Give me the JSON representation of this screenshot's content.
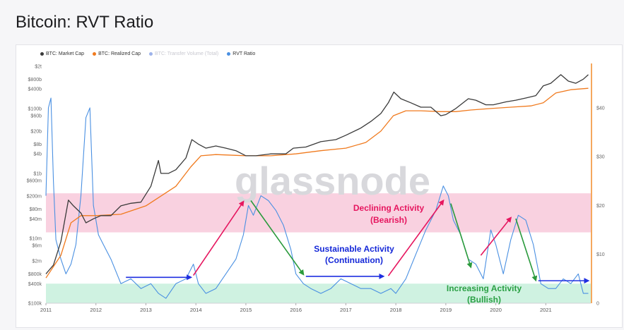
{
  "page": {
    "title": "Bitcoin: RVT Ratio"
  },
  "colors": {
    "market_cap": "#3a3a3a",
    "realized_cap": "#f07a1e",
    "transfer_volume": "#9db3ea",
    "rvt_ratio": "#4a90e2",
    "bearish_band": "#f8c9da",
    "bullish_band": "#c7f0dc",
    "right_axis": "#f28c28"
  },
  "legend": [
    {
      "label": "BTC: Market Cap",
      "color": "#3a3a3a",
      "dim": false
    },
    {
      "label": "BTC: Realized Cap",
      "color": "#f07a1e",
      "dim": false
    },
    {
      "label": "BTC: Transfer Volume (Total)",
      "color": "#9db3ea",
      "dim": true
    },
    {
      "label": "RVT Ratio",
      "color": "#4a90e2",
      "dim": false
    }
  ],
  "watermark": "glassnode",
  "annotations": [
    {
      "text": "Declining Activity",
      "color": "#e6165f"
    },
    {
      "text": "(Bearish)",
      "color": "#e6165f"
    },
    {
      "text": "Sustainable Activity",
      "color": "#1528d8"
    },
    {
      "text": "(Continuation)",
      "color": "#1528d8"
    },
    {
      "text": "Increasing Activity",
      "color": "#2aa044"
    },
    {
      "text": "(Bullish)",
      "color": "#2aa044"
    }
  ],
  "chart_data": {
    "type": "line",
    "title": "Bitcoin: RVT Ratio",
    "x_ticks": [
      "2011",
      "2012",
      "2013",
      "2014",
      "2015",
      "2016",
      "2017",
      "2018",
      "2019",
      "2020",
      "2021"
    ],
    "x_range": [
      2011,
      2021.9
    ],
    "left_axis": {
      "scale": "log",
      "ticks": [
        "$100k",
        "$400k",
        "$800k",
        "$2m",
        "$6m",
        "$10m",
        "$40m",
        "$80m",
        "$200m",
        "$600m",
        "$1b",
        "$4b",
        "$8b",
        "$20b",
        "$60b",
        "$100b",
        "$400b",
        "$800b",
        "$2t"
      ],
      "tick_values": [
        100000.0,
        400000.0,
        800000.0,
        2000000.0,
        6000000.0,
        10000000.0,
        40000000.0,
        80000000.0,
        200000000.0,
        600000000.0,
        1000000000.0,
        4000000000.0,
        8000000000.0,
        20000000000.0,
        60000000000.0,
        100000000000.0,
        400000000000.0,
        800000000000.0,
        2000000000000.0
      ],
      "range": [
        100000.0,
        2000000000000.0
      ]
    },
    "right_axis": {
      "scale": "linear",
      "ticks": [
        "0",
        "$10",
        "$20",
        "$30",
        "$40"
      ],
      "tick_values": [
        0,
        10,
        20,
        30,
        40
      ],
      "range": [
        0,
        48.5
      ]
    },
    "bands": [
      {
        "name": "bearish",
        "from": 14.5,
        "to": 22.5
      },
      {
        "name": "bullish",
        "from": 0,
        "to": 4
      }
    ],
    "series": [
      {
        "name": "BTC: Market Cap",
        "axis": "left",
        "x": [
          2011.0,
          2011.15,
          2011.3,
          2011.45,
          2011.55,
          2011.7,
          2011.8,
          2011.95,
          2012.1,
          2012.3,
          2012.5,
          2012.7,
          2012.9,
          2013.1,
          2013.25,
          2013.3,
          2013.45,
          2013.6,
          2013.8,
          2013.92,
          2014.05,
          2014.2,
          2014.4,
          2014.6,
          2014.8,
          2015.0,
          2015.2,
          2015.5,
          2015.8,
          2015.95,
          2016.2,
          2016.5,
          2016.8,
          2017.0,
          2017.3,
          2017.5,
          2017.7,
          2017.85,
          2017.96,
          2018.1,
          2018.3,
          2018.5,
          2018.7,
          2018.9,
          2019.0,
          2019.2,
          2019.45,
          2019.6,
          2019.8,
          2019.95,
          2020.2,
          2020.4,
          2020.6,
          2020.8,
          2020.95,
          2021.1,
          2021.3,
          2021.45,
          2021.6,
          2021.75,
          2021.85
        ],
        "values": [
          800000.0,
          1500000.0,
          8000000.0,
          150000000.0,
          100000000.0,
          60000000.0,
          30000000.0,
          40000000.0,
          50000000.0,
          50000000.0,
          100000000.0,
          120000000.0,
          130000000.0,
          400000000.0,
          2500000000.0,
          1000000000.0,
          1000000000.0,
          1300000000.0,
          3000000000.0,
          11000000000.0,
          8000000000.0,
          6000000000.0,
          7000000000.0,
          6000000000.0,
          5000000000.0,
          3500000000.0,
          3500000000.0,
          4000000000.0,
          4000000000.0,
          6000000000.0,
          6500000000.0,
          9500000000.0,
          11000000000.0,
          15000000000.0,
          25000000000.0,
          40000000000.0,
          70000000000.0,
          150000000000.0,
          320000000000.0,
          200000000000.0,
          150000000000.0,
          110000000000.0,
          110000000000.0,
          60000000000.0,
          65000000000.0,
          100000000000.0,
          200000000000.0,
          180000000000.0,
          130000000000.0,
          130000000000.0,
          160000000000.0,
          180000000000.0,
          210000000000.0,
          250000000000.0,
          500000000000.0,
          600000000000.0,
          1100000000000.0,
          700000000000.0,
          600000000000.0,
          800000000000.0,
          1100000000000.0
        ]
      },
      {
        "name": "BTC: Realized Cap",
        "axis": "left",
        "x": [
          2011.0,
          2011.3,
          2011.5,
          2011.7,
          2012.0,
          2012.5,
          2013.0,
          2013.3,
          2013.6,
          2013.9,
          2014.1,
          2014.4,
          2014.8,
          2015.0,
          2015.5,
          2016.0,
          2016.5,
          2017.0,
          2017.4,
          2017.7,
          2017.95,
          2018.2,
          2018.5,
          2018.9,
          2019.2,
          2019.5,
          2019.9,
          2020.3,
          2020.7,
          2020.95,
          2021.2,
          2021.5,
          2021.85
        ],
        "values": [
          600000.0,
          3000000.0,
          30000000.0,
          50000000.0,
          50000000.0,
          55000000.0,
          100000000.0,
          200000000.0,
          400000000.0,
          1600000000.0,
          3500000000.0,
          3800000000.0,
          3600000000.0,
          3500000000.0,
          3500000000.0,
          4000000000.0,
          5000000000.0,
          6000000000.0,
          9000000000.0,
          20000000000.0,
          60000000000.0,
          85000000000.0,
          85000000000.0,
          80000000000.0,
          80000000000.0,
          90000000000.0,
          100000000000.0,
          110000000000.0,
          120000000000.0,
          150000000000.0,
          300000000000.0,
          380000000000.0,
          420000000000.0
        ]
      },
      {
        "name": "RVT Ratio",
        "axis": "right",
        "x": [
          2011.0,
          2011.05,
          2011.1,
          2011.15,
          2011.2,
          2011.3,
          2011.4,
          2011.5,
          2011.6,
          2011.7,
          2011.8,
          2011.88,
          2011.95,
          2012.05,
          2012.15,
          2012.3,
          2012.5,
          2012.7,
          2012.9,
          2013.1,
          2013.25,
          2013.4,
          2013.6,
          2013.8,
          2013.95,
          2014.05,
          2014.2,
          2014.4,
          2014.6,
          2014.8,
          2014.95,
          2015.05,
          2015.15,
          2015.3,
          2015.45,
          2015.6,
          2015.75,
          2015.9,
          2016.0,
          2016.15,
          2016.3,
          2016.5,
          2016.7,
          2016.9,
          2017.1,
          2017.3,
          2017.5,
          2017.7,
          2017.9,
          2018.0,
          2018.2,
          2018.4,
          2018.6,
          2018.8,
          2018.95,
          2019.05,
          2019.15,
          2019.3,
          2019.45,
          2019.6,
          2019.75,
          2019.9,
          2020.0,
          2020.15,
          2020.3,
          2020.45,
          2020.6,
          2020.75,
          2020.9,
          2021.05,
          2021.2,
          2021.35,
          2021.5,
          2021.65,
          2021.75,
          2021.85
        ],
        "values": [
          22,
          40,
          42,
          25,
          13,
          9,
          6,
          8,
          12,
          22,
          38,
          40,
          20,
          14,
          12,
          9,
          4,
          5,
          3,
          4,
          2,
          1,
          4,
          5,
          8,
          4,
          2,
          3,
          6,
          9,
          14,
          20,
          18,
          22,
          21,
          19,
          16,
          11,
          6,
          4,
          3,
          2,
          3,
          5,
          4,
          3,
          3,
          2,
          3,
          2,
          5,
          10,
          15,
          19,
          24,
          22,
          17,
          14,
          9,
          8,
          5,
          15,
          12,
          6,
          13,
          18,
          17,
          12,
          4,
          3,
          3,
          5,
          4,
          6,
          2,
          2
        ]
      }
    ],
    "arrows": [
      {
        "color": "#1f2fe0",
        "from": [
          2012.6,
          5.3
        ],
        "to": [
          2013.9,
          5.3
        ]
      },
      {
        "color": "#e6165f",
        "from": [
          2013.95,
          5.7
        ],
        "to": [
          2014.95,
          20.8
        ]
      },
      {
        "color": "#2a9a3c",
        "from": [
          2015.1,
          21
        ],
        "to": [
          2016.15,
          5.9
        ]
      },
      {
        "color": "#1f2fe0",
        "from": [
          2016.2,
          5.5
        ],
        "to": [
          2017.75,
          5.5
        ]
      },
      {
        "color": "#e6165f",
        "from": [
          2017.85,
          5.6
        ],
        "to": [
          2018.95,
          21
        ]
      },
      {
        "color": "#2a9a3c",
        "from": [
          2019.1,
          20.4
        ],
        "to": [
          2019.5,
          7.4
        ]
      },
      {
        "color": "#e6165f",
        "from": [
          2019.7,
          9.8
        ],
        "to": [
          2020.3,
          17.5
        ]
      },
      {
        "color": "#2a9a3c",
        "from": [
          2020.4,
          17.3
        ],
        "to": [
          2020.8,
          4.7
        ]
      },
      {
        "color": "#1f2fe0",
        "from": [
          2020.85,
          4.6
        ],
        "to": [
          2021.85,
          4.6
        ]
      }
    ]
  }
}
